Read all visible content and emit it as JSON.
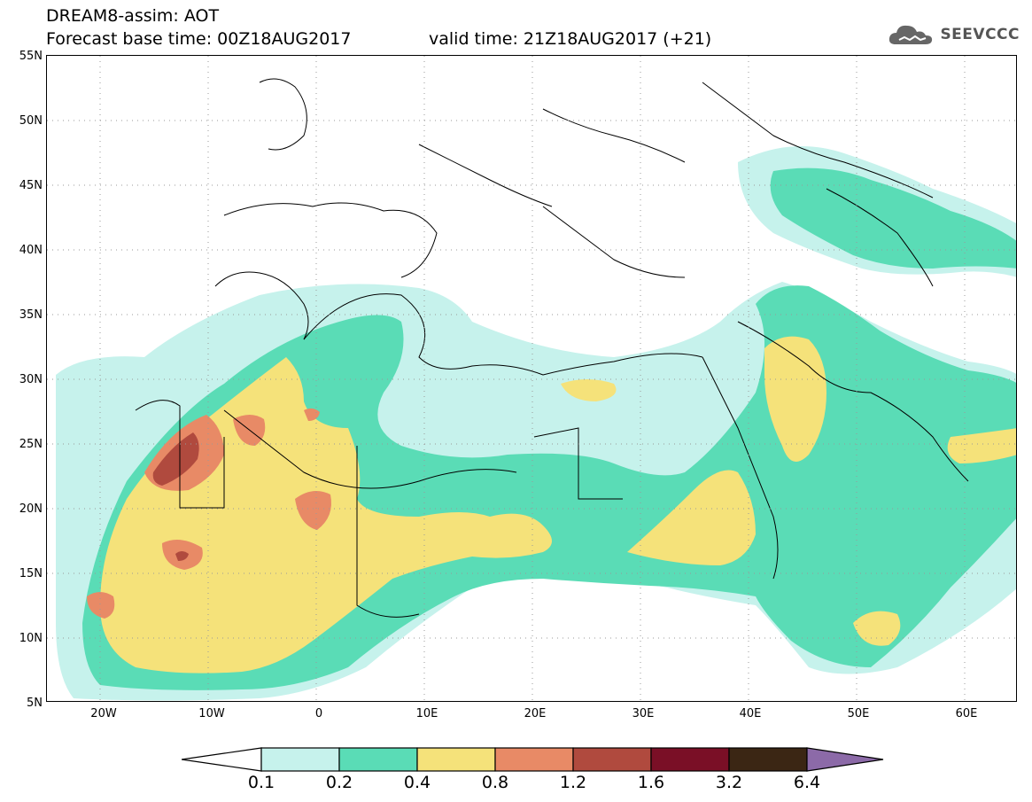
{
  "header": {
    "title": "DREAM8-assim: AOT",
    "base_time": "Forecast base time: 00Z18AUG2017",
    "valid_time": "valid time: 21Z18AUG2017 (+21)"
  },
  "logo": {
    "text": "SEEVCCC",
    "icon": "cloud-icon"
  },
  "map": {
    "lat_labels": [
      "55N",
      "50N",
      "45N",
      "40N",
      "35N",
      "30N",
      "25N",
      "20N",
      "15N",
      "10N",
      "5N"
    ],
    "lon_labels": [
      "20W",
      "10W",
      "0",
      "10E",
      "20E",
      "30E",
      "40E",
      "50E",
      "60E"
    ],
    "lon_range": [
      -25,
      65
    ],
    "lat_range": [
      5,
      55
    ],
    "grid": "dotted"
  },
  "colorbar": {
    "labels": [
      "0.1",
      "0.2",
      "0.4",
      "0.8",
      "1.2",
      "1.6",
      "3.2",
      "6.4"
    ],
    "colors": [
      "#ffffff",
      "#c6f2ec",
      "#5adcb6",
      "#f5e27a",
      "#e88a66",
      "#b04a3e",
      "#7a0f26",
      "#3b2614",
      "#8c6aa8"
    ]
  },
  "colors": {
    "aot_0_1": "#c6f2ec",
    "aot_0_2": "#5adcb6",
    "aot_0_4": "#f5e27a",
    "aot_0_8": "#e88a66",
    "aot_1_2": "#b04a3e"
  }
}
